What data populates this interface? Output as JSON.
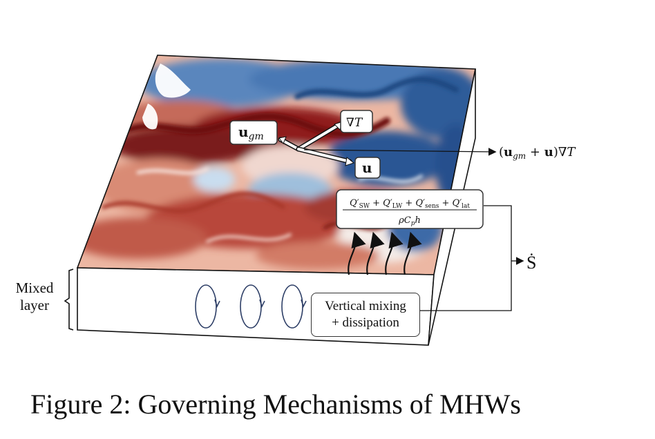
{
  "caption": "Figure 2: Governing Mechanisms of MHWs",
  "mixed_layer_label": [
    "Mixed",
    "layer"
  ],
  "vertical_mixing_label": [
    "Vertical mixing",
    "+ dissipation"
  ],
  "advection_term": "(u_gm + u)∇T",
  "velocity_gm_label": "u_gm",
  "gradient_label": "∇T",
  "velocity_label": "u",
  "heat_flux_numerator": "Q'SW + Q'LW + Q'sens + Q'lat",
  "heat_flux_denominator": "ρC_p h",
  "source_term": "Ṡ",
  "colors": {
    "warm": "#8b1a1a",
    "cool": "#1f4e8c",
    "outline": "#222222",
    "eddy": "#2d3e66"
  }
}
